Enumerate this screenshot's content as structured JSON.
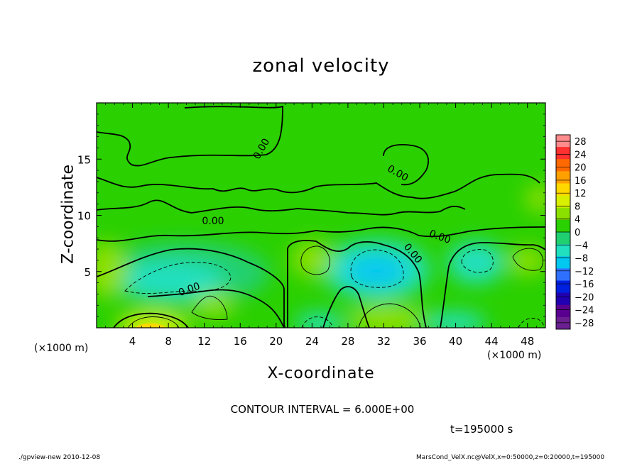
{
  "chart_data": {
    "type": "heatmap",
    "title": "zonal velocity",
    "xlabel": "X-coordinate",
    "ylabel": "Z-coordinate",
    "x_unit_left": "(×1000 m)",
    "x_unit_right": "(×1000 m)",
    "xlim": [
      0,
      50
    ],
    "ylim": [
      0,
      20
    ],
    "x_ticks": [
      "4",
      "8",
      "12",
      "16",
      "20",
      "24",
      "28",
      "32",
      "36",
      "40",
      "44",
      "48"
    ],
    "x_tick_values": [
      4,
      8,
      12,
      16,
      20,
      24,
      28,
      32,
      36,
      40,
      44,
      48
    ],
    "y_ticks": [
      "5",
      "10",
      "15"
    ],
    "y_tick_values": [
      5,
      10,
      15
    ],
    "colorbar": {
      "labels": [
        "28",
        "24",
        "20",
        "16",
        "12",
        "8",
        "4",
        "0",
        "−4",
        "−8",
        "−12",
        "−16",
        "−20",
        "−24",
        "−28"
      ],
      "levels": [
        28,
        24,
        20,
        16,
        12,
        8,
        4,
        0,
        -4,
        -8,
        -12,
        -16,
        -20,
        -24,
        -28
      ],
      "range": [
        -30,
        30
      ],
      "colors": [
        "#ff8c8c",
        "#ff3030",
        "#ff6a00",
        "#ffa000",
        "#ffd800",
        "#d8f000",
        "#8ce000",
        "#2ad000",
        "#20d070",
        "#20e0c0",
        "#00c8f0",
        "#3070ff",
        "#0020e0",
        "#2000b0",
        "#5a0090",
        "#6a2090"
      ]
    },
    "contour_labels": [
      "0.00",
      "0.00",
      "0.00",
      "0.00",
      "0.00",
      "0.00"
    ],
    "contour_interval": "CONTOUR INTERVAL = 6.000E+00",
    "time": "t=195000 s",
    "features": [
      {
        "name": "positive-core-bottom-left",
        "x": 6.5,
        "z": 0.5,
        "value": 12
      },
      {
        "name": "negative-core-left",
        "x": 10,
        "z": 4.5,
        "value": -9
      },
      {
        "name": "positive-core-mid",
        "x": 24.5,
        "z": 6,
        "value": 6
      },
      {
        "name": "negative-core-center",
        "x": 30,
        "z": 5,
        "value": -10
      },
      {
        "name": "positive-core-bottom-center",
        "x": 31,
        "z": 1.5,
        "value": 6
      },
      {
        "name": "negative-core-right",
        "x": 42,
        "z": 6,
        "value": -7
      },
      {
        "name": "positive-core-right",
        "x": 48,
        "z": 6,
        "value": 5
      }
    ]
  },
  "footer": {
    "left": "./gpview-new  2010-12-08",
    "right": "MarsCond_VelX.nc@VelX,x=0:50000,z=0:20000,t=195000"
  }
}
